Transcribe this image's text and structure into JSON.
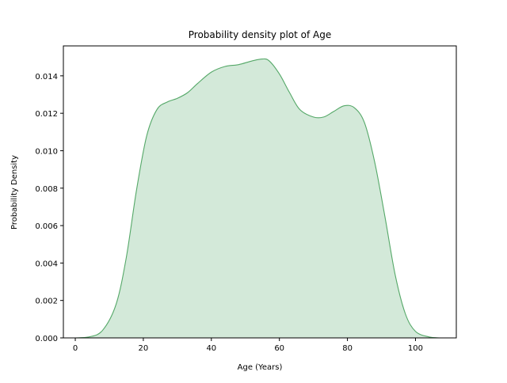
{
  "chart_data": {
    "type": "area",
    "title": "Probability density plot of Age",
    "xlabel": "Age (Years)",
    "ylabel": "Probability Density",
    "xlim": [
      -3.5,
      112
    ],
    "ylim": [
      0,
      0.0156
    ],
    "xticks": [
      0,
      20,
      40,
      60,
      80,
      100
    ],
    "yticks": [
      0.0,
      0.002,
      0.004,
      0.006,
      0.008,
      0.01,
      0.012,
      0.014
    ],
    "xtick_labels": [
      "0",
      "20",
      "40",
      "60",
      "80",
      "100"
    ],
    "ytick_labels": [
      "0.000",
      "0.002",
      "0.004",
      "0.006",
      "0.008",
      "0.010",
      "0.012",
      "0.014"
    ],
    "grid": false,
    "legend": "none",
    "colors": {
      "line": "#55a868",
      "fill": "#d3e9d9"
    },
    "series": [
      {
        "x": [
          0,
          4,
          8,
          12,
          15,
          18,
          21,
          24,
          27,
          30,
          33,
          36,
          40,
          44,
          48,
          52,
          55,
          57,
          60,
          63,
          66,
          70,
          73,
          76,
          79,
          82,
          85,
          88,
          91,
          94,
          97,
          100,
          104,
          107
        ],
        "y": [
          0.0,
          5e-05,
          0.0004,
          0.0018,
          0.0043,
          0.0079,
          0.0108,
          0.0122,
          0.0126,
          0.0128,
          0.0131,
          0.0136,
          0.0142,
          0.0145,
          0.0146,
          0.0148,
          0.0149,
          0.0148,
          0.0141,
          0.0131,
          0.0122,
          0.0118,
          0.0118,
          0.0121,
          0.0124,
          0.0123,
          0.0115,
          0.0094,
          0.0065,
          0.0034,
          0.0013,
          0.00035,
          5e-05,
          0.0
        ]
      }
    ]
  }
}
